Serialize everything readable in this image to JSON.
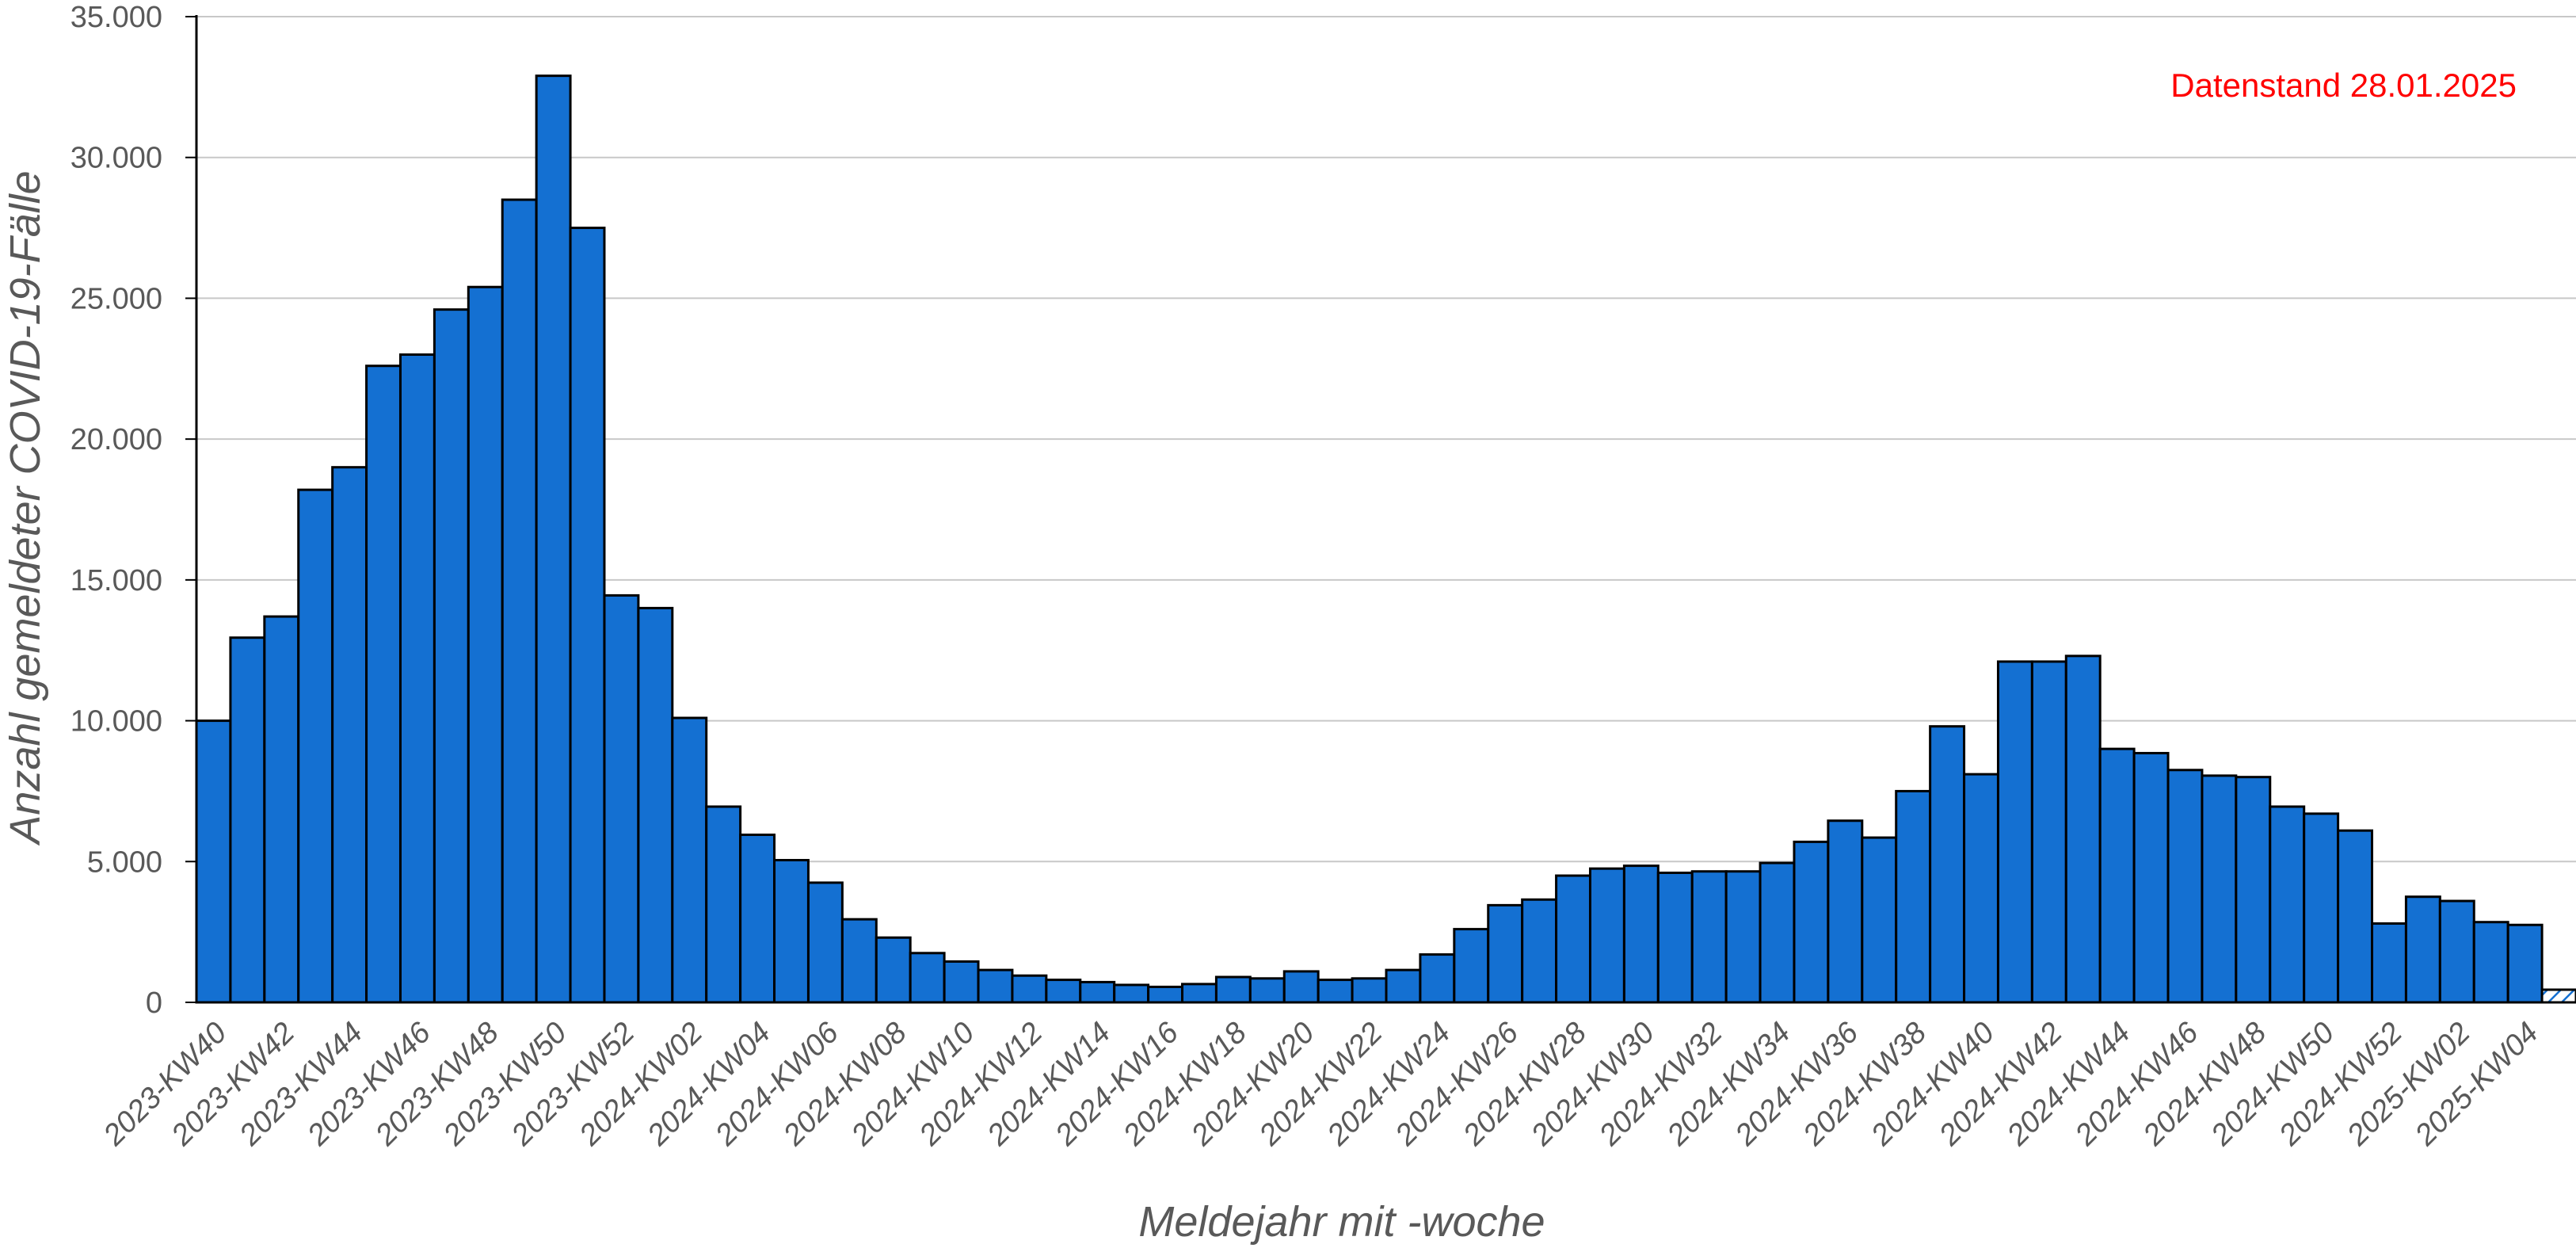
{
  "chart_data": {
    "type": "bar",
    "xlabel": "Meldejahr mit -woche",
    "ylabel": "Anzahl gemeldeter COVID-19-Fälle",
    "annotation": "Datenstand 28.01.2025",
    "annotation_color": "#FF0000",
    "bar_color": "#1470D2",
    "bar_edge_color": "#000000",
    "grid_color": "#C8C8C8",
    "tick_color": "#595959",
    "ylim": [
      0,
      35000
    ],
    "yticks": [
      0,
      5000,
      10000,
      15000,
      20000,
      25000,
      30000,
      35000
    ],
    "ytick_labels": [
      "0",
      "5.000",
      "10.000",
      "15.000",
      "20.000",
      "25.000",
      "30.000",
      "35.000"
    ],
    "grid": true,
    "legend": "none",
    "last_bar_style": "hatched",
    "tick_labels": [
      "2023-KW40",
      "2023-KW42",
      "2023-KW44",
      "2023-KW46",
      "2023-KW48",
      "2023-KW50",
      "2023-KW52",
      "2024-KW02",
      "2024-KW04",
      "2024-KW06",
      "2024-KW08",
      "2024-KW10",
      "2024-KW12",
      "2024-KW14",
      "2024-KW16",
      "2024-KW18",
      "2024-KW20",
      "2024-KW22",
      "2024-KW24",
      "2024-KW26",
      "2024-KW28",
      "2024-KW30",
      "2024-KW32",
      "2024-KW34",
      "2024-KW36",
      "2024-KW38",
      "2024-KW40",
      "2024-KW42",
      "2024-KW44",
      "2024-KW46",
      "2024-KW48",
      "2024-KW50",
      "2024-KW52",
      "2025-KW02",
      "2025-KW04"
    ],
    "categories": [
      "2023-KW40",
      "2023-KW41",
      "2023-KW42",
      "2023-KW43",
      "2023-KW44",
      "2023-KW45",
      "2023-KW46",
      "2023-KW47",
      "2023-KW48",
      "2023-KW49",
      "2023-KW50",
      "2023-KW51",
      "2023-KW52",
      "2024-KW01",
      "2024-KW02",
      "2024-KW03",
      "2024-KW04",
      "2024-KW05",
      "2024-KW06",
      "2024-KW07",
      "2024-KW08",
      "2024-KW09",
      "2024-KW10",
      "2024-KW11",
      "2024-KW12",
      "2024-KW13",
      "2024-KW14",
      "2024-KW15",
      "2024-KW16",
      "2024-KW17",
      "2024-KW18",
      "2024-KW19",
      "2024-KW20",
      "2024-KW21",
      "2024-KW22",
      "2024-KW23",
      "2024-KW24",
      "2024-KW25",
      "2024-KW26",
      "2024-KW27",
      "2024-KW28",
      "2024-KW29",
      "2024-KW30",
      "2024-KW31",
      "2024-KW32",
      "2024-KW33",
      "2024-KW34",
      "2024-KW35",
      "2024-KW36",
      "2024-KW37",
      "2024-KW38",
      "2024-KW39",
      "2024-KW40",
      "2024-KW41",
      "2024-KW42",
      "2024-KW43",
      "2024-KW44",
      "2024-KW45",
      "2024-KW46",
      "2024-KW47",
      "2024-KW48",
      "2024-KW49",
      "2024-KW50",
      "2024-KW51",
      "2024-KW52",
      "2025-KW01",
      "2025-KW02",
      "2025-KW03",
      "2025-KW04",
      "2025-KW05"
    ],
    "values": [
      10000,
      12950,
      13700,
      18200,
      19000,
      22600,
      23000,
      24600,
      25400,
      28500,
      32900,
      27500,
      14450,
      14000,
      10100,
      6950,
      5950,
      5050,
      4250,
      2950,
      2300,
      1750,
      1450,
      1150,
      950,
      800,
      720,
      620,
      550,
      650,
      900,
      850,
      1100,
      800,
      850,
      1150,
      1700,
      2600,
      3450,
      3650,
      4500,
      4750,
      4850,
      4600,
      4650,
      4650,
      4950,
      5700,
      6450,
      5850,
      7500,
      9800,
      8100,
      12100,
      12100,
      12300,
      9000,
      8850,
      8250,
      8050,
      8000,
      6950,
      6700,
      6100,
      2800,
      3750,
      3600,
      2850,
      2750,
      450
    ]
  }
}
